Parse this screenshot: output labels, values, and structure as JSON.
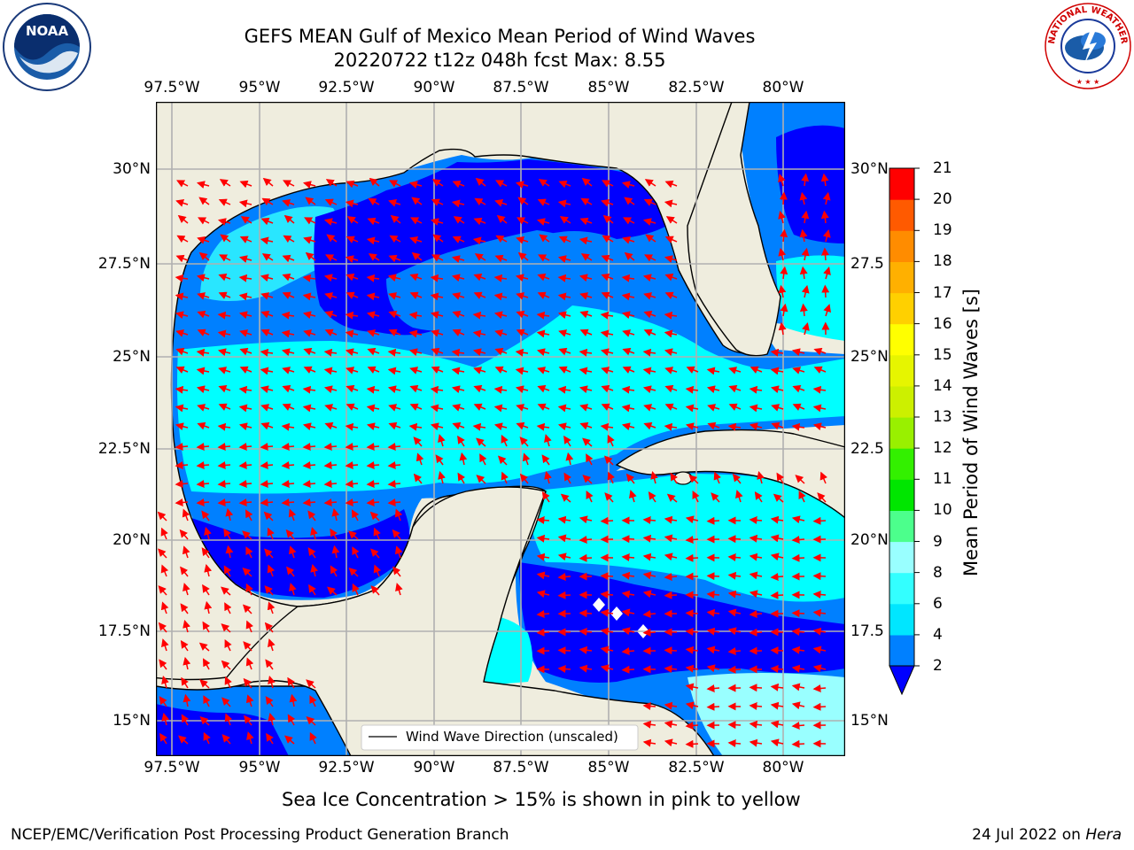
{
  "title": {
    "line1": "GEFS MEAN Gulf of Mexico Mean Period of Wind Waves",
    "line2": "20220722 t12z 048h fcst   Max: 8.55"
  },
  "logos": {
    "left": "noaa-logo",
    "right": "national-weather-service-logo"
  },
  "map": {
    "lon_ticks_top": [
      "97.5°W",
      "95°W",
      "92.5°W",
      "90°W",
      "87.5°W",
      "85°W",
      "82.5°W",
      "80°W"
    ],
    "lon_ticks_bottom": [
      "97.5°W",
      "95°W",
      "92.5°W",
      "90°W",
      "87.5°W",
      "85°W",
      "82.5°W",
      "80°W"
    ],
    "lat_ticks_left": [
      "30°N",
      "27.5°N",
      "25°N",
      "22.5°N",
      "20°N",
      "17.5°N",
      "15°N"
    ],
    "lat_ticks_right": [
      "30°N",
      "27.5",
      "25°N",
      "22.5",
      "20°N",
      "17.5",
      "15°N"
    ],
    "legend": "Wind Wave Direction (unscaled)",
    "land_color": "#efedde",
    "arrow_color": "#ff0000"
  },
  "colorbar": {
    "label": "Mean Period of Wind Waves [s]",
    "ticks": [
      "2",
      "4",
      "6",
      "8",
      "9",
      "10",
      "11",
      "12",
      "13",
      "14",
      "15",
      "16",
      "17",
      "18",
      "19",
      "20",
      "21"
    ],
    "colors": [
      "#0080ff",
      "#00e6ff",
      "#33ffff",
      "#66ffff",
      "#99ffff",
      "#4cff8c",
      "#00f04c",
      "#00e600",
      "#66f000",
      "#a6f000",
      "#ccf000",
      "#e6f500",
      "#ffff00",
      "#ffe600",
      "#ffcc00",
      "#ffb000",
      "#ff9400",
      "#ff7a00",
      "#ff5a00",
      "#ff3a00",
      "#ff0000"
    ],
    "under_color": "#0000ff"
  },
  "notes": {
    "sea_ice": "Sea Ice Concentration > 15% is shown in pink to yellow",
    "footer_left": "NCEP/EMC/Verification Post Processing Product Generation Branch",
    "footer_right_date": "24 Jul 2022 on",
    "footer_right_host": "Hera"
  }
}
